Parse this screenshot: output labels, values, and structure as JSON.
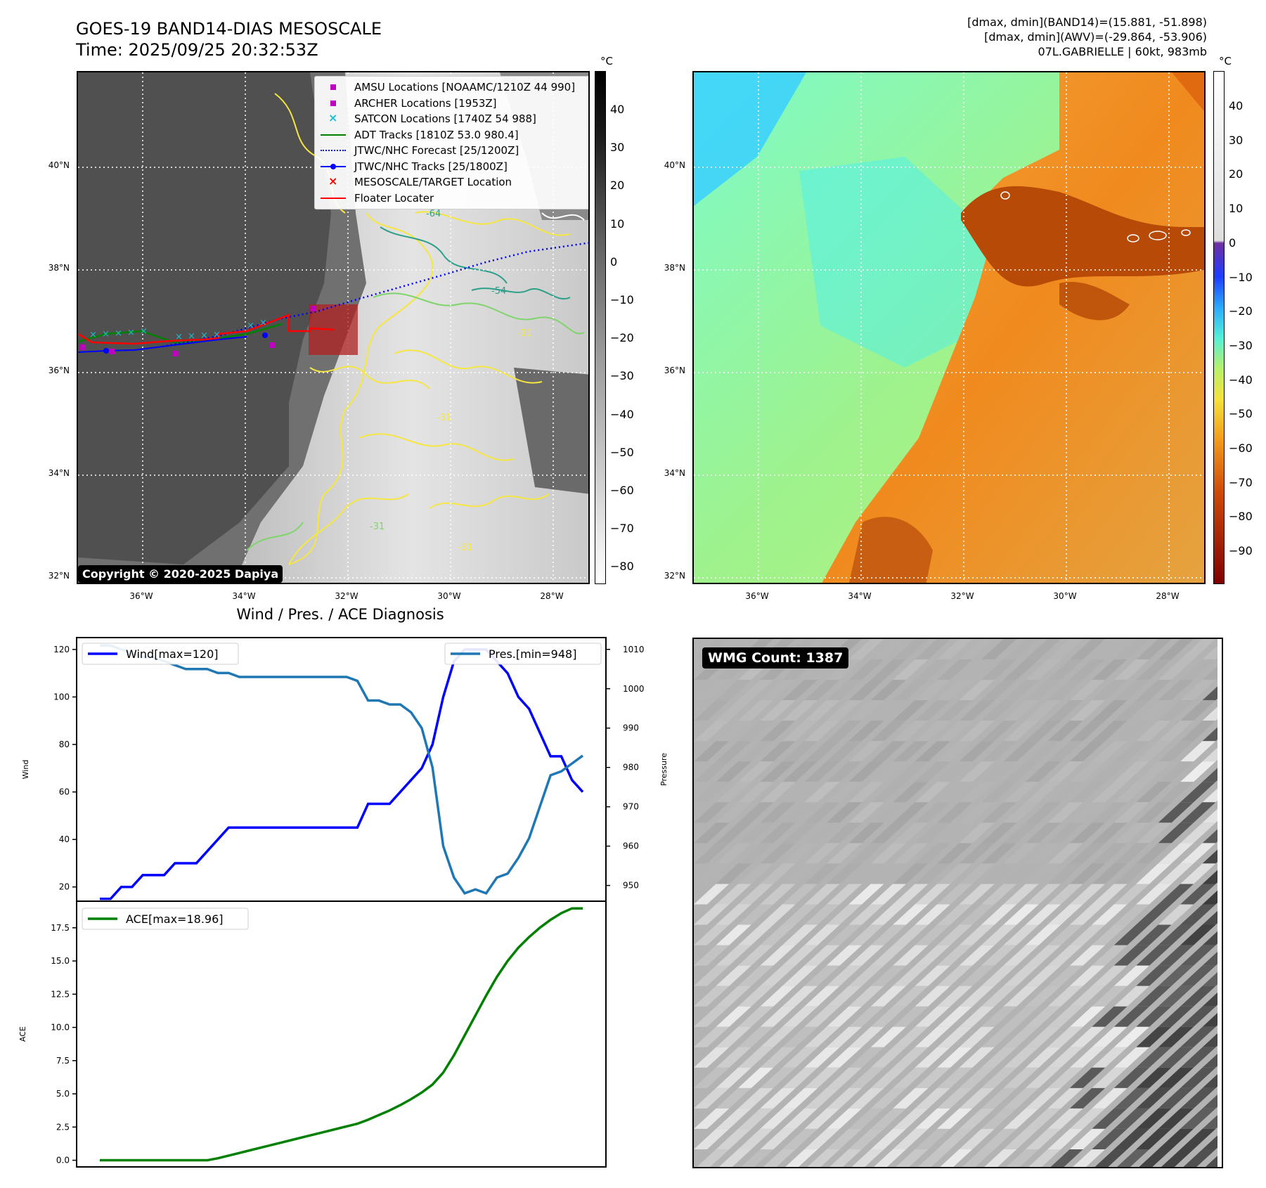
{
  "header": {
    "title_line1": "GOES-19 BAND14-DIAS MESOSCALE",
    "title_line2": "Time: 2025/09/25 20:32:53Z",
    "info_line1": "[dmax, dmin](BAND14)=(15.881, -51.898)",
    "info_line2": "[dmax, dmin](AWV)=(-29.864, -53.906)",
    "info_line3": "07L.GABRIELLE | 60kt, 983mb"
  },
  "map_axes": {
    "lat_labels": [
      "40°N",
      "38°N",
      "36°N",
      "34°N",
      "32°N"
    ],
    "lon_labels": [
      "36°W",
      "34°W",
      "32°W",
      "30°W",
      "28°W"
    ]
  },
  "ir_panel": {
    "unit": "°C",
    "colorbar_ticks": [
      "40",
      "30",
      "20",
      "10",
      "0",
      "−10",
      "−20",
      "−30",
      "−40",
      "−50",
      "−60",
      "−70",
      "−80"
    ],
    "copyright": "Copyright © 2020-2025 Dapiya",
    "legend": [
      {
        "label": "AMSU Locations [NOAAMC/1210Z 44 990]",
        "color": "#c000c0",
        "icon": "square-marker-icon"
      },
      {
        "label": "ARCHER Locations [1953Z]",
        "color": "#c000c0",
        "icon": "square-marker-icon"
      },
      {
        "label": "SATCON Locations [1740Z 54 988]",
        "color": "#17becf",
        "icon": "x-marker-icon"
      },
      {
        "label": "ADT Tracks [1810Z 53.0 980.4]",
        "color": "#008000",
        "icon": "solid-line-icon"
      },
      {
        "label": "JTWC/NHC Forecast [25/1200Z]",
        "color": "#0000ff",
        "icon": "dotted-line-icon"
      },
      {
        "label": "JTWC/NHC Tracks [25/1800Z]",
        "color": "#0000ff",
        "icon": "dot-line-icon"
      },
      {
        "label": "MESOSCALE/TARGET Location",
        "color": "#ff0000",
        "icon": "x-marker-icon"
      },
      {
        "label": "Floater Locater",
        "color": "#ff0000",
        "icon": "solid-line-icon"
      }
    ],
    "contour_labels": [
      "-64",
      "-54",
      "-31",
      "-31",
      "-31",
      "-31"
    ]
  },
  "color_panel": {
    "unit": "°C",
    "colorbar_ticks": [
      "40",
      "30",
      "20",
      "10",
      "0",
      "−10",
      "−20",
      "−30",
      "−40",
      "−50",
      "−60",
      "−70",
      "−80",
      "−90"
    ]
  },
  "wmg_panel": {
    "badge": "WMG Count: 1387"
  },
  "chart_data": [
    {
      "type": "line",
      "title": "Wind / Pres. / ACE Diagnosis",
      "ylabel": "Wind",
      "y2label": "Pressure",
      "ylim": [
        14,
        125
      ],
      "y2lim": [
        946,
        1013
      ],
      "yticks": [
        "20",
        "40",
        "60",
        "80",
        "100",
        "120"
      ],
      "y2ticks": [
        "950",
        "960",
        "970",
        "980",
        "990",
        "1000",
        "1010"
      ],
      "series": [
        {
          "name": "Wind[max=120]",
          "color": "#0000ff",
          "axis": "left",
          "values": [
            15,
            15,
            20,
            20,
            25,
            25,
            25,
            30,
            30,
            30,
            35,
            40,
            45,
            45,
            45,
            45,
            45,
            45,
            45,
            45,
            45,
            45,
            45,
            45,
            45,
            55,
            55,
            55,
            60,
            65,
            70,
            80,
            100,
            115,
            120,
            120,
            120,
            115,
            110,
            100,
            95,
            85,
            75,
            75,
            65,
            60
          ]
        },
        {
          "name": "Pres.[min=948]",
          "color": "#1f77b4",
          "axis": "right",
          "values": [
            1011,
            1011,
            1010,
            1009,
            1008,
            1008,
            1007,
            1006,
            1005,
            1005,
            1005,
            1004,
            1004,
            1003,
            1003,
            1003,
            1003,
            1003,
            1003,
            1003,
            1003,
            1003,
            1003,
            1003,
            1002,
            997,
            997,
            996,
            996,
            994,
            990,
            980,
            960,
            952,
            948,
            949,
            948,
            952,
            953,
            957,
            962,
            970,
            978,
            979,
            981,
            983
          ]
        }
      ]
    },
    {
      "type": "line",
      "ylabel": "ACE",
      "ylim": [
        -0.5,
        19.5
      ],
      "yticks": [
        "0.0",
        "2.5",
        "5.0",
        "7.5",
        "10.0",
        "12.5",
        "15.0",
        "17.5"
      ],
      "series": [
        {
          "name": "ACE[max=18.96]",
          "color": "#008000",
          "axis": "left",
          "values": [
            0,
            0,
            0,
            0,
            0,
            0,
            0,
            0,
            0,
            0,
            0,
            0.15,
            0.35,
            0.55,
            0.75,
            0.95,
            1.15,
            1.35,
            1.55,
            1.75,
            1.95,
            2.15,
            2.35,
            2.55,
            2.75,
            3.05,
            3.4,
            3.75,
            4.15,
            4.6,
            5.1,
            5.7,
            6.6,
            7.9,
            9.4,
            10.9,
            12.4,
            13.8,
            15.0,
            16.0,
            16.8,
            17.5,
            18.1,
            18.6,
            18.96,
            18.96
          ]
        }
      ]
    }
  ]
}
